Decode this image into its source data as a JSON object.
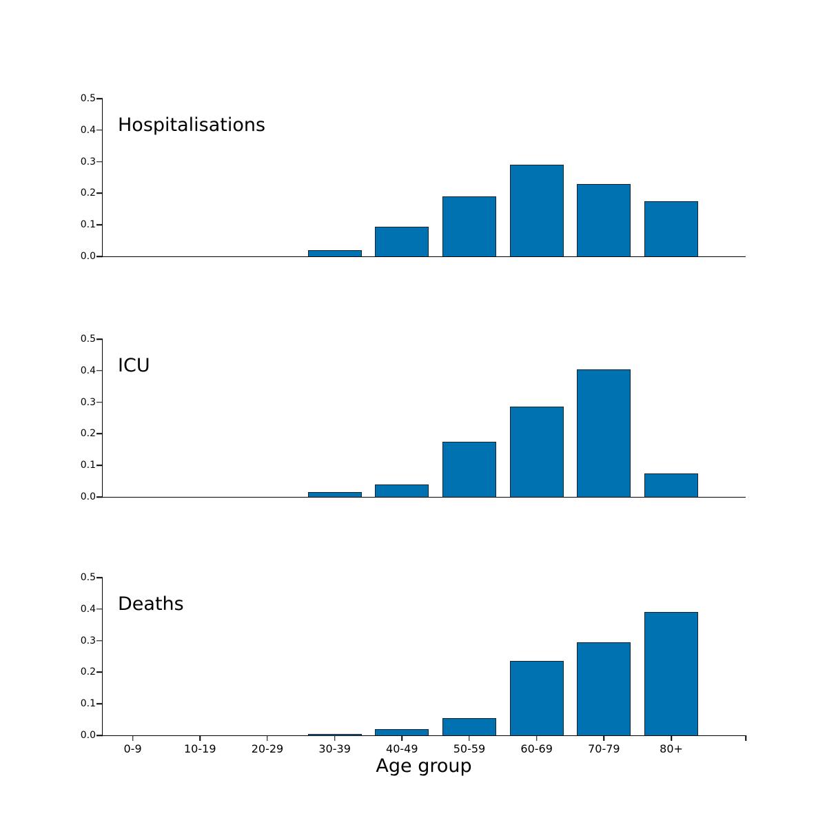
{
  "figure": {
    "background_color": "#ffffff",
    "bar_color": "#0072B2",
    "bar_edge_color": "#15232e",
    "axis_color": "#000000",
    "xlabel": "Age group"
  },
  "chart_data": [
    {
      "type": "bar",
      "title": "Hospitalisations",
      "categories": [
        "0-9",
        "10-19",
        "20-29",
        "30-39",
        "40-49",
        "50-59",
        "60-69",
        "70-79",
        "80+"
      ],
      "values": [
        0,
        0,
        0,
        0.02,
        0.095,
        0.19,
        0.29,
        0.23,
        0.175
      ],
      "xlabel": "",
      "ylabel": "",
      "ylim": [
        0,
        0.5
      ],
      "yticks": [
        "0.0",
        "0.1",
        "0.2",
        "0.3",
        "0.4",
        "0.5"
      ],
      "grid": false,
      "legend": "none",
      "show_x_tick_labels": false
    },
    {
      "type": "bar",
      "title": "ICU",
      "categories": [
        "0-9",
        "10-19",
        "20-29",
        "30-39",
        "40-49",
        "50-59",
        "60-69",
        "70-79",
        "80+"
      ],
      "values": [
        0,
        0,
        0,
        0.015,
        0.04,
        0.175,
        0.285,
        0.405,
        0.075
      ],
      "xlabel": "",
      "ylabel": "",
      "ylim": [
        0,
        0.5
      ],
      "yticks": [
        "0.0",
        "0.1",
        "0.2",
        "0.3",
        "0.4",
        "0.5"
      ],
      "grid": false,
      "legend": "none",
      "show_x_tick_labels": false
    },
    {
      "type": "bar",
      "title": "Deaths",
      "categories": [
        "0-9",
        "10-19",
        "20-29",
        "30-39",
        "40-49",
        "50-59",
        "60-69",
        "70-79",
        "80+"
      ],
      "values": [
        0,
        0,
        0,
        0.005,
        0.02,
        0.055,
        0.235,
        0.295,
        0.39
      ],
      "xlabel": "Age group",
      "ylabel": "",
      "ylim": [
        0,
        0.5
      ],
      "yticks": [
        "0.0",
        "0.1",
        "0.2",
        "0.3",
        "0.4",
        "0.5"
      ],
      "grid": false,
      "legend": "none",
      "show_x_tick_labels": true
    }
  ]
}
